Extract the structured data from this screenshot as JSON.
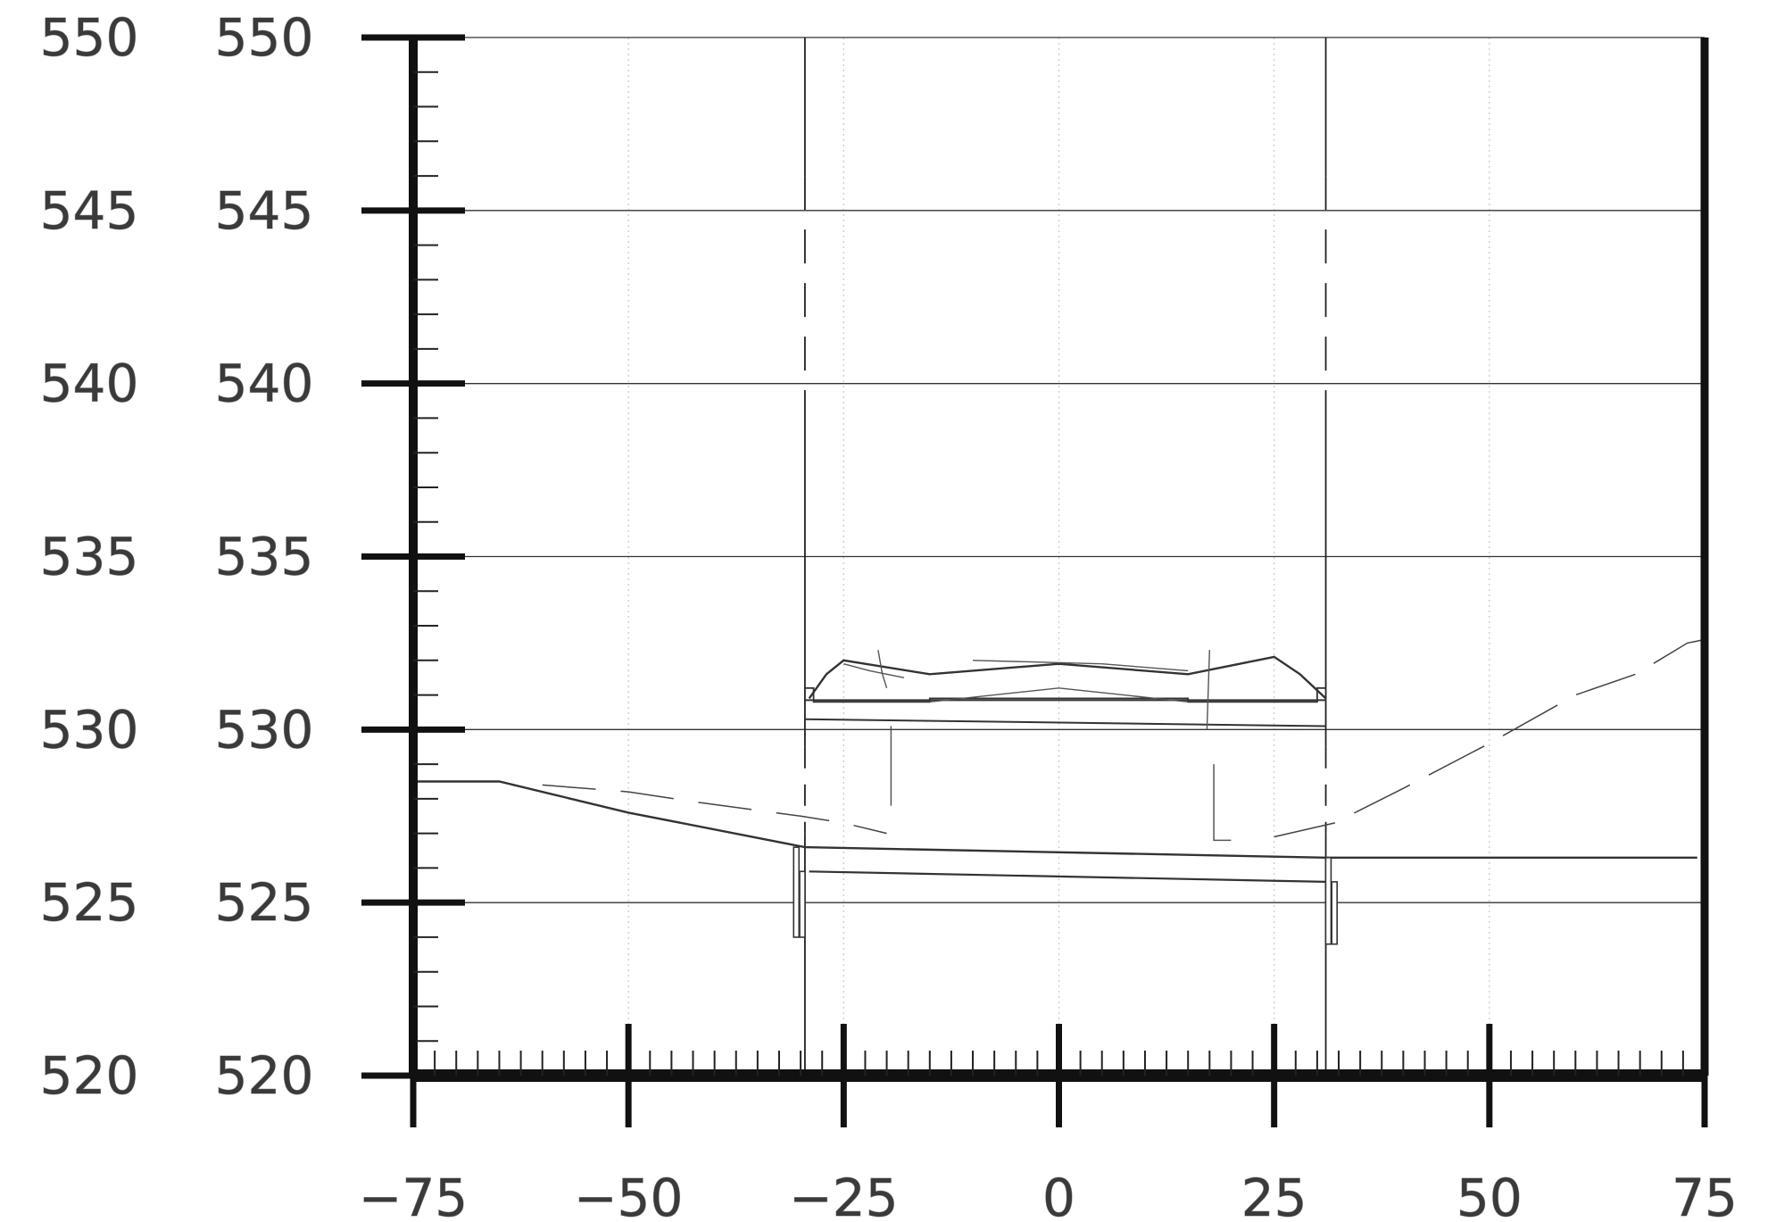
{
  "y_axis_labels": {
    "left": [
      "550",
      "545",
      "540",
      "535",
      "530",
      "525",
      "520"
    ],
    "right": [
      "550",
      "545",
      "540",
      "535",
      "530",
      "525",
      "520"
    ]
  },
  "x_axis_labels": [
    "−75",
    "−50",
    "−25",
    "0",
    "25",
    "50",
    "75"
  ],
  "section": {
    "x_range": [
      -75,
      75
    ],
    "y_range": [
      520,
      550
    ],
    "ground_left": [
      [
        -75,
        528.5
      ],
      [
        -65,
        528.5
      ],
      [
        -50,
        527.6
      ],
      [
        -29.5,
        526.6
      ]
    ],
    "existing_dashed_left": [
      [
        -60,
        528.4
      ],
      [
        -50,
        528.2
      ],
      [
        -42,
        527.9
      ],
      [
        -30,
        527.5
      ],
      [
        -25,
        527.3
      ],
      [
        -20,
        527.0
      ]
    ],
    "existing_dashed_right": [
      [
        25,
        526.9
      ],
      [
        32,
        527.3
      ],
      [
        40,
        528.3
      ],
      [
        50,
        529.6
      ],
      [
        60,
        531.0
      ],
      [
        67,
        531.6
      ],
      [
        73,
        532.5
      ],
      [
        75,
        532.6
      ]
    ],
    "bed_line": [
      [
        -29.5,
        526.6
      ],
      [
        31,
        526.3
      ],
      [
        75,
        526.3
      ]
    ],
    "piles_left_x": -29.5,
    "piles_right_x": 31.5,
    "deck_top": [
      [
        -29,
        530.9
      ],
      [
        -27,
        531.6
      ],
      [
        -25,
        532.0
      ],
      [
        -15,
        531.6
      ],
      [
        0,
        531.9
      ],
      [
        15,
        531.6
      ],
      [
        25,
        532.1
      ],
      [
        28,
        531.6
      ],
      [
        31,
        530.9
      ]
    ]
  }
}
